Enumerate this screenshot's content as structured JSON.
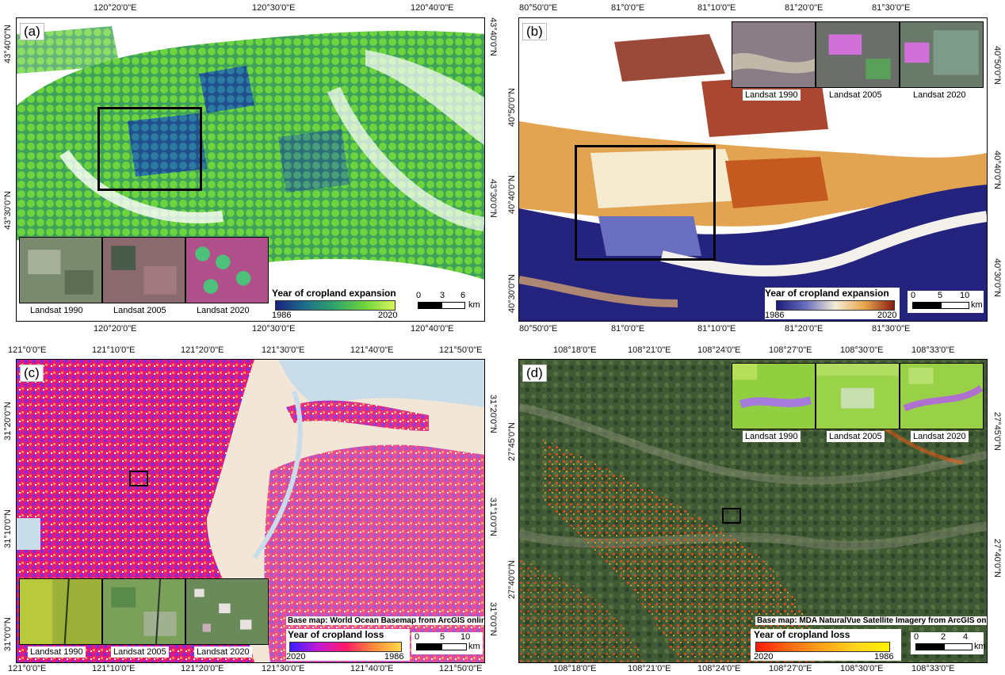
{
  "panels": {
    "a": {
      "label": "(a)",
      "top_ticks": [
        "120°20'0\"E",
        "120°30'0\"E",
        "120°40'0\"E"
      ],
      "bottom_ticks": [
        "120°20'0\"E",
        "120°30'0\"E",
        "120°40'0\"E"
      ],
      "left_ticks": [
        "43°40'0\"N",
        "43°30'0\"N"
      ],
      "right_ticks": [
        "43°40'0\"N",
        "43°30'0\"N"
      ],
      "insets": [
        "Landsat 1990",
        "Landsat 2005",
        "Landsat 2020"
      ],
      "legend_title": "Year of cropland expansion",
      "legend_lo": "1986",
      "legend_hi": "2020",
      "scale": [
        "0",
        "3",
        "6",
        "km"
      ],
      "ramp": [
        "#1a237e",
        "#1e6f8a",
        "#2fa66a",
        "#6fd43c",
        "#d8f55a"
      ]
    },
    "b": {
      "label": "(b)",
      "top_ticks": [
        "80°50'0\"E",
        "81°0'0\"E",
        "81°10'0\"E",
        "81°20'0\"E",
        "81°30'0\"E"
      ],
      "bottom_ticks": [
        "80°50'0\"E",
        "81°0'0\"E",
        "81°10'0\"E",
        "81°20'0\"E",
        "81°30'0\"E"
      ],
      "left_ticks": [
        "40°50'0\"N",
        "40°40'0\"N",
        "40°30'0\"N"
      ],
      "right_ticks": [
        "40°50'0\"N",
        "40°40'0\"N",
        "40°30'0\"N"
      ],
      "insets": [
        "Landsat 1990",
        "Landsat 2005",
        "Landsat 2020"
      ],
      "legend_title": "Year of cropland expansion",
      "legend_lo": "1986",
      "legend_hi": "2020",
      "scale": [
        "0",
        "5",
        "10",
        "km"
      ],
      "ramp": [
        "#1c1c7a",
        "#6a6fc0",
        "#f5ecd5",
        "#e7a54a",
        "#8a1f12"
      ]
    },
    "c": {
      "label": "(c)",
      "top_ticks": [
        "121°0'0\"E",
        "121°10'0\"E",
        "121°20'0\"E",
        "121°30'0\"E",
        "121°40'0\"E",
        "121°50'0\"E"
      ],
      "bottom_ticks": [
        "121°0'0\"E",
        "121°10'0\"E",
        "121°20'0\"E",
        "121°30'0\"E",
        "121°40'0\"E",
        "121°50'0\"E"
      ],
      "left_ticks": [
        "31°20'0\"N",
        "31°10'0\"N",
        "31°0'0\"N"
      ],
      "right_ticks": [
        "31°20'0\"N",
        "31°10'0\"N",
        "31°0'0\"N"
      ],
      "insets": [
        "Landsat 1990",
        "Landsat 2005",
        "Landsat 2020"
      ],
      "basemap": "Base map: World Ocean Basemap from ArcGIS online",
      "legend_title": "Year of cropland loss",
      "legend_lo": "2020",
      "legend_hi": "1986",
      "scale": [
        "0",
        "5",
        "10",
        "km"
      ],
      "ramp": [
        "#3a1cff",
        "#c21ad6",
        "#ff1a6a",
        "#ff8a3a",
        "#ffd84a"
      ]
    },
    "d": {
      "label": "(d)",
      "top_ticks": [
        "108°18'0\"E",
        "108°21'0\"E",
        "108°24'0\"E",
        "108°27'0\"E",
        "108°30'0\"E",
        "108°33'0\"E"
      ],
      "bottom_ticks": [
        "108°18'0\"E",
        "108°21'0\"E",
        "108°24'0\"E",
        "108°27'0\"E",
        "108°30'0\"E",
        "108°33'0\"E"
      ],
      "left_ticks": [
        "27°45'0\"N",
        "27°40'0\"N"
      ],
      "right_ticks": [
        "27°45'0\"N",
        "27°40'0\"N"
      ],
      "insets": [
        "Landsat 1990",
        "Landsat 2005",
        "Landsat 2020"
      ],
      "basemap": "Base map: MDA NaturalVue Satellite Imagery from ArcGIS online",
      "legend_title": "Year of cropland loss",
      "legend_lo": "2020",
      "legend_hi": "1986",
      "scale": [
        "0",
        "2",
        "4",
        "km"
      ],
      "ramp": [
        "#ff1a0a",
        "#ff6a10",
        "#ffa51a",
        "#ffd41f",
        "#fff200"
      ]
    }
  }
}
